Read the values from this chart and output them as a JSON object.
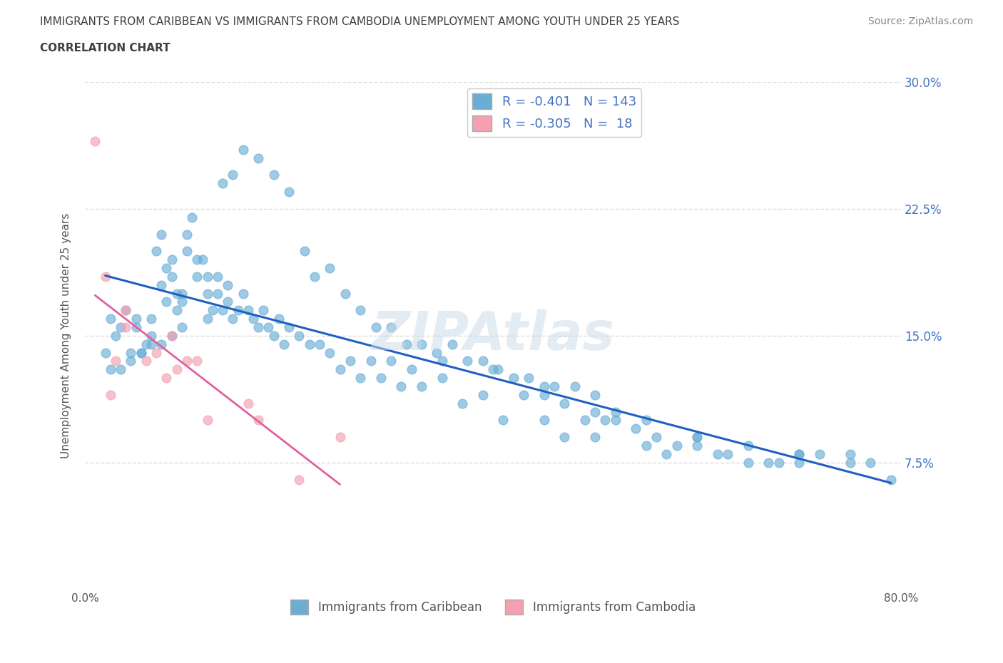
{
  "title_line1": "IMMIGRANTS FROM CARIBBEAN VS IMMIGRANTS FROM CAMBODIA UNEMPLOYMENT AMONG YOUTH UNDER 25 YEARS",
  "title_line2": "CORRELATION CHART",
  "source_text": "Source: ZipAtlas.com",
  "ylabel": "Unemployment Among Youth under 25 years",
  "watermark": "ZIPAtlas",
  "xlim": [
    0,
    0.8
  ],
  "ylim": [
    0,
    0.3
  ],
  "ytick_positions": [
    0.0,
    0.075,
    0.15,
    0.225,
    0.3
  ],
  "ytick_labels_right": [
    "",
    "7.5%",
    "15.0%",
    "22.5%",
    "30.0%"
  ],
  "color_caribbean": "#6aaed6",
  "color_cambodia": "#f4a0b0",
  "line_color_caribbean": "#2060c0",
  "line_color_cambodia": "#e060a0",
  "background_color": "#ffffff",
  "grid_color": "#dddddd",
  "scatter_caribbean_x": [
    0.02,
    0.03,
    0.025,
    0.035,
    0.04,
    0.045,
    0.05,
    0.05,
    0.055,
    0.06,
    0.065,
    0.065,
    0.07,
    0.075,
    0.075,
    0.08,
    0.08,
    0.085,
    0.085,
    0.09,
    0.09,
    0.095,
    0.095,
    0.1,
    0.1,
    0.105,
    0.11,
    0.11,
    0.115,
    0.12,
    0.12,
    0.125,
    0.13,
    0.13,
    0.135,
    0.14,
    0.14,
    0.145,
    0.15,
    0.155,
    0.16,
    0.165,
    0.17,
    0.175,
    0.18,
    0.185,
    0.19,
    0.195,
    0.2,
    0.21,
    0.22,
    0.23,
    0.24,
    0.25,
    0.26,
    0.27,
    0.28,
    0.29,
    0.3,
    0.31,
    0.32,
    0.33,
    0.35,
    0.37,
    0.39,
    0.41,
    0.43,
    0.45,
    0.47,
    0.5,
    0.52,
    0.55,
    0.57,
    0.6,
    0.63,
    0.67,
    0.7,
    0.135,
    0.145,
    0.155,
    0.17,
    0.185,
    0.2,
    0.215,
    0.225,
    0.24,
    0.255,
    0.27,
    0.285,
    0.3,
    0.315,
    0.33,
    0.345,
    0.36,
    0.375,
    0.39,
    0.405,
    0.42,
    0.435,
    0.45,
    0.46,
    0.47,
    0.48,
    0.49,
    0.5,
    0.51,
    0.52,
    0.54,
    0.56,
    0.58,
    0.6,
    0.62,
    0.65,
    0.68,
    0.7,
    0.72,
    0.75,
    0.77,
    0.79,
    0.35,
    0.4,
    0.45,
    0.5,
    0.55,
    0.6,
    0.65,
    0.7,
    0.75,
    0.12,
    0.095,
    0.085,
    0.075,
    0.065,
    0.055,
    0.045,
    0.035,
    0.025
  ],
  "scatter_caribbean_y": [
    0.14,
    0.15,
    0.16,
    0.155,
    0.165,
    0.14,
    0.155,
    0.16,
    0.14,
    0.145,
    0.15,
    0.16,
    0.2,
    0.18,
    0.21,
    0.19,
    0.17,
    0.195,
    0.185,
    0.175,
    0.165,
    0.17,
    0.175,
    0.2,
    0.21,
    0.22,
    0.195,
    0.185,
    0.195,
    0.175,
    0.185,
    0.165,
    0.175,
    0.185,
    0.165,
    0.18,
    0.17,
    0.16,
    0.165,
    0.175,
    0.165,
    0.16,
    0.155,
    0.165,
    0.155,
    0.15,
    0.16,
    0.145,
    0.155,
    0.15,
    0.145,
    0.145,
    0.14,
    0.13,
    0.135,
    0.125,
    0.135,
    0.125,
    0.135,
    0.12,
    0.13,
    0.12,
    0.125,
    0.11,
    0.115,
    0.1,
    0.115,
    0.1,
    0.09,
    0.09,
    0.1,
    0.085,
    0.08,
    0.085,
    0.08,
    0.075,
    0.08,
    0.24,
    0.245,
    0.26,
    0.255,
    0.245,
    0.235,
    0.2,
    0.185,
    0.19,
    0.175,
    0.165,
    0.155,
    0.155,
    0.145,
    0.145,
    0.14,
    0.145,
    0.135,
    0.135,
    0.13,
    0.125,
    0.125,
    0.115,
    0.12,
    0.11,
    0.12,
    0.1,
    0.115,
    0.1,
    0.105,
    0.095,
    0.09,
    0.085,
    0.09,
    0.08,
    0.075,
    0.075,
    0.08,
    0.08,
    0.075,
    0.075,
    0.065,
    0.135,
    0.13,
    0.12,
    0.105,
    0.1,
    0.09,
    0.085,
    0.075,
    0.08,
    0.16,
    0.155,
    0.15,
    0.145,
    0.145,
    0.14,
    0.135,
    0.13,
    0.13
  ],
  "scatter_cambodia_x": [
    0.01,
    0.02,
    0.025,
    0.03,
    0.04,
    0.04,
    0.06,
    0.07,
    0.08,
    0.085,
    0.09,
    0.1,
    0.11,
    0.12,
    0.16,
    0.17,
    0.21,
    0.25
  ],
  "scatter_cambodia_y": [
    0.265,
    0.185,
    0.115,
    0.135,
    0.155,
    0.165,
    0.135,
    0.14,
    0.125,
    0.15,
    0.13,
    0.135,
    0.135,
    0.1,
    0.11,
    0.1,
    0.065,
    0.09
  ]
}
